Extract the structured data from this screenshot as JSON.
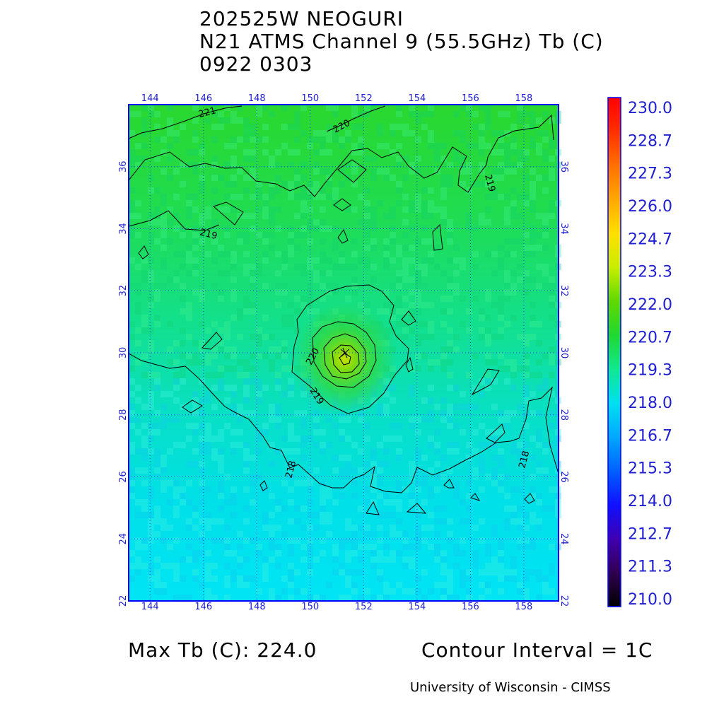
{
  "title": {
    "line1": "202525W NEOGURI",
    "line2": "N21 ATMS Channel 9 (55.5GHz) Tb (C)",
    "line3": "0922 0303"
  },
  "map": {
    "lon_min": 143.2,
    "lon_max": 159.3,
    "lat_min": 22.0,
    "lat_max": 38.0,
    "lon_ticks": [
      "144",
      "146",
      "148",
      "150",
      "152",
      "154",
      "156",
      "158"
    ],
    "lat_ticks": [
      "22",
      "24",
      "26",
      "28",
      "30",
      "32",
      "34",
      "36"
    ],
    "storm_center": {
      "lon": 151.3,
      "lat": 30.0
    },
    "contour_labels": [
      "221",
      "220",
      "219",
      "219",
      "220",
      "219",
      "218",
      "218"
    ]
  },
  "colorbar": {
    "labels": [
      "230.0",
      "228.7",
      "227.3",
      "226.0",
      "224.7",
      "223.3",
      "222.0",
      "220.7",
      "219.3",
      "218.0",
      "216.7",
      "215.3",
      "214.0",
      "212.7",
      "211.3",
      "210.0"
    ],
    "colors": [
      "#ff0000",
      "#ff3000",
      "#ff7000",
      "#ffa800",
      "#ffe000",
      "#c8ee00",
      "#60d800",
      "#20d830",
      "#10e890",
      "#00e0f0",
      "#00a8ff",
      "#0060ff",
      "#1010ff",
      "#4000b0",
      "#300050",
      "#000000"
    ]
  },
  "footer": {
    "max_tb": "Max Tb (C): 224.0",
    "contour_interval": "Contour Interval = 1C",
    "credit": "University of Wisconsin - CIMSS"
  }
}
